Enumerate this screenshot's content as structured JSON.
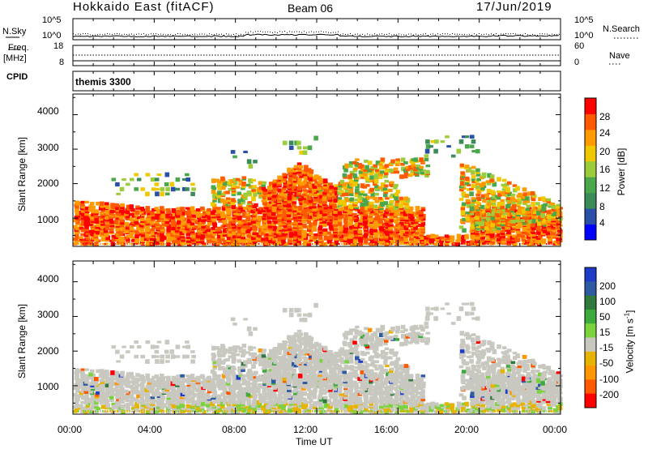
{
  "header": {
    "station": "Hokkaido East (fitACF)",
    "beam": "Beam 06",
    "date": "17/Jun/2019"
  },
  "left_labels": {
    "nsky": "N.Sky",
    "freq": "Freq.",
    "freq_unit": "[MHz]",
    "cpid": "CPID"
  },
  "right_labels": {
    "nsearch": "N.Search",
    "nave": "Nave"
  },
  "cpid_value": "themis 3300",
  "colors": {
    "power": [
      "#0000ff",
      "#2a4fa8",
      "#3c8c5a",
      "#4aa84a",
      "#9ccc3c",
      "#f0c800",
      "#ff9a00",
      "#ff5a00",
      "#ff0000"
    ],
    "velocity_pos": [
      "#1e3cc8",
      "#2d5aa0",
      "#2f7a3c",
      "#3caa3c",
      "#7ad23c"
    ],
    "velocity_gray": "#c8c8c0",
    "velocity_neg": [
      "#e6b400",
      "#ff9600",
      "#ff5a00",
      "#ff0000"
    ]
  },
  "chart_data": [
    {
      "type": "line",
      "name": "noise",
      "ylabel_left": "N.Sky",
      "ylabel_right": "N.Search",
      "yticks_left": [
        "10^5",
        "10^0"
      ],
      "yticks_right": [
        "10^5",
        "10^0"
      ]
    },
    {
      "type": "line",
      "name": "frequency-nave",
      "yticks_left": [
        "18",
        "8"
      ],
      "yticks_right": [
        "60",
        "0"
      ]
    },
    {
      "type": "heatmap",
      "name": "power",
      "ylabel": "Slant Range [km]",
      "ylim": [
        180,
        4600
      ],
      "yticks": [
        "1000",
        "2000",
        "3000",
        "4000"
      ],
      "colorbar_label": "Power [dB]",
      "colorbar_ticks": [
        "28",
        "24",
        "20",
        "16",
        "12",
        "8",
        "4"
      ]
    },
    {
      "type": "heatmap",
      "name": "velocity",
      "ylabel": "Slant Range [km]",
      "ylim": [
        180,
        4600
      ],
      "yticks": [
        "1000",
        "2000",
        "3000",
        "4000"
      ],
      "colorbar_label": "Velocity [m s",
      "colorbar_label_sup": "-1",
      "colorbar_label_end": "]",
      "colorbar_ticks": [
        "200",
        "100",
        "50",
        "15",
        "-15",
        "-50",
        "-100",
        "-200"
      ]
    }
  ],
  "xaxis": {
    "ticks": [
      "00:00",
      "04:00",
      "08:00",
      "12:00",
      "16:00",
      "20:00",
      "00:00"
    ],
    "label": "Time UT"
  }
}
